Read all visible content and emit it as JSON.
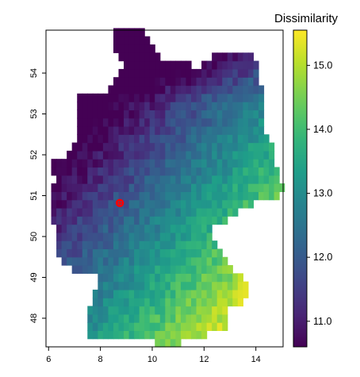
{
  "chart_data": {
    "type": "heatmap",
    "title": "",
    "xlabel": "",
    "ylabel": "",
    "xlim": [
      5.9,
      15.05
    ],
    "ylim": [
      47.3,
      55.05
    ],
    "x_ticks": [
      {
        "value": 6,
        "label": "6"
      },
      {
        "value": 8,
        "label": "8"
      },
      {
        "value": 10,
        "label": "10"
      },
      {
        "value": 12,
        "label": "12"
      },
      {
        "value": 14,
        "label": "14"
      }
    ],
    "y_ticks": [
      {
        "value": 48,
        "label": "48"
      },
      {
        "value": 49,
        "label": "49"
      },
      {
        "value": 50,
        "label": "50"
      },
      {
        "value": 51,
        "label": "51"
      },
      {
        "value": 52,
        "label": "52"
      },
      {
        "value": 53,
        "label": "53"
      },
      {
        "value": 54,
        "label": "54"
      }
    ],
    "grid": false,
    "colorbar": {
      "title": "Dissimilarity",
      "range": [
        10.6,
        15.55
      ],
      "ticks": [
        {
          "value": 11.0,
          "label": "11.0"
        },
        {
          "value": 12.0,
          "label": "12.0"
        },
        {
          "value": 13.0,
          "label": "13.0"
        },
        {
          "value": 14.0,
          "label": "14.0"
        },
        {
          "value": 15.0,
          "label": "15.0"
        }
      ],
      "colormap": "viridis"
    },
    "marker": {
      "lon": 8.75,
      "lat": 50.82,
      "color": "#ff0000"
    },
    "cell_size_deg": 0.2,
    "region_outline": {
      "lon_lat_polygon": [
        [
          8.4,
          55.05
        ],
        [
          9.6,
          55.05
        ],
        [
          9.9,
          54.8
        ],
        [
          10.4,
          54.4
        ],
        [
          11.2,
          54.35
        ],
        [
          11.7,
          54.15
        ],
        [
          12.4,
          54.45
        ],
        [
          13.0,
          54.5
        ],
        [
          13.6,
          54.6
        ],
        [
          14.1,
          54.2
        ],
        [
          14.25,
          53.6
        ],
        [
          14.4,
          53.1
        ],
        [
          14.15,
          52.7
        ],
        [
          14.6,
          52.4
        ],
        [
          14.7,
          51.8
        ],
        [
          15.05,
          51.3
        ],
        [
          14.95,
          50.85
        ],
        [
          14.3,
          50.9
        ],
        [
          13.6,
          50.7
        ],
        [
          12.6,
          50.3
        ],
        [
          12.15,
          50.3
        ],
        [
          12.5,
          49.75
        ],
        [
          12.9,
          49.35
        ],
        [
          13.8,
          48.8
        ],
        [
          13.75,
          48.45
        ],
        [
          13.0,
          48.25
        ],
        [
          12.9,
          47.6
        ],
        [
          12.3,
          47.65
        ],
        [
          11.0,
          47.4
        ],
        [
          10.3,
          47.3
        ],
        [
          9.6,
          47.55
        ],
        [
          8.6,
          47.6
        ],
        [
          7.6,
          47.58
        ],
        [
          7.5,
          48.2
        ],
        [
          8.0,
          49.0
        ],
        [
          7.0,
          49.15
        ],
        [
          6.4,
          49.5
        ],
        [
          6.35,
          49.9
        ],
        [
          6.1,
          50.5
        ],
        [
          6.05,
          51.0
        ],
        [
          6.25,
          51.5
        ],
        [
          6.0,
          51.8
        ],
        [
          6.7,
          52.0
        ],
        [
          7.05,
          52.4
        ],
        [
          7.0,
          53.2
        ],
        [
          7.3,
          53.55
        ],
        [
          8.3,
          53.6
        ],
        [
          8.6,
          53.9
        ],
        [
          8.9,
          54.3
        ],
        [
          8.6,
          54.6
        ]
      ]
    },
    "value_field": {
      "base": 12.4,
      "lon_gradient": 0.42,
      "lon_center": 10.5,
      "lat_gradient": -0.55,
      "lat_center": 51.2,
      "noise": 0.35
    }
  }
}
